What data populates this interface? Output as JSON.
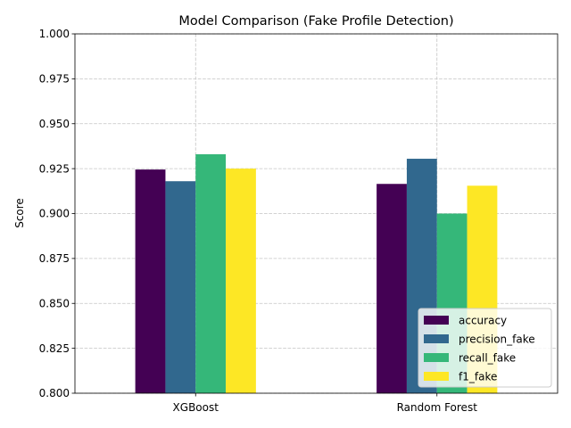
{
  "chart_data": {
    "type": "bar",
    "title": "Model Comparison (Fake Profile Detection)",
    "xlabel": "",
    "ylabel": "Score",
    "ylim": [
      0.8,
      1.0
    ],
    "yticks": [
      0.8,
      0.825,
      0.85,
      0.875,
      0.9,
      0.925,
      0.95,
      0.975,
      1.0
    ],
    "ytick_labels": [
      "0.800",
      "0.825",
      "0.850",
      "0.875",
      "0.900",
      "0.925",
      "0.950",
      "0.975",
      "1.000"
    ],
    "categories": [
      "XGBoost",
      "Random Forest"
    ],
    "series": [
      {
        "name": "accuracy",
        "color": "#440154",
        "values": [
          0.9245,
          0.9165
        ]
      },
      {
        "name": "precision_fake",
        "color": "#31688e",
        "values": [
          0.918,
          0.9305
        ]
      },
      {
        "name": "recall_fake",
        "color": "#35b779",
        "values": [
          0.933,
          0.9
        ]
      },
      {
        "name": "f1_fake",
        "color": "#fde725",
        "values": [
          0.925,
          0.9155
        ]
      }
    ],
    "grid": true,
    "legend_position": "lower-right"
  }
}
